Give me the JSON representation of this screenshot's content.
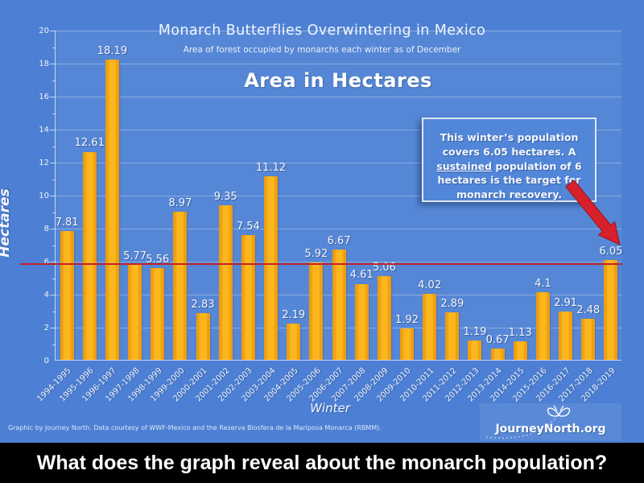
{
  "slide": {
    "title": "Monarch Butterflies Overwintering in Mexico",
    "subtitle": "Area of forest occupied by monarchs each winter as of December",
    "heading": "Area in Hectares",
    "note": {
      "part1": "This winter’s population covers 6.05 hectares. A ",
      "underlined": "sustained",
      "part2": " population of 6 hectares is the target for monarch recovery."
    },
    "footer_credit": "Graphic by Journey North. Data courtesy of WWF-Mexico and the Reserva Biosfera de la Mariposa Monarca (RBMM).",
    "logo": {
      "icon": "butterfly-icon",
      "text": "JourneyNorth.org"
    },
    "question": "What does the graph reveal about the monarch population?"
  },
  "chart_data": {
    "type": "bar",
    "title": "Monarch Butterflies Overwintering in Mexico",
    "subtitle": "Area of forest occupied by monarchs each winter as of December",
    "xlabel": "Winter",
    "ylabel": "Hectares",
    "ylim": [
      0,
      20
    ],
    "ytick_step": 2,
    "grid": true,
    "legend": false,
    "bar_color": "#fbb315",
    "categories": [
      "1994-1995",
      "1995-1996",
      "1996-1997",
      "1997-1998",
      "1998-1999",
      "1999-2000",
      "2000-2001",
      "2001-2002",
      "2002-2003",
      "2003-2004",
      "2004-2005",
      "2005-2006",
      "2006-2007",
      "2007-2008",
      "2008-2009",
      "2009-2010",
      "2010-2011",
      "2011-2012",
      "2012-2013",
      "2013-2014",
      "2014-2015",
      "2015-2016",
      "2016-2017",
      "2017-2018",
      "2018-2019"
    ],
    "values": [
      7.81,
      12.61,
      18.19,
      5.77,
      5.56,
      8.97,
      2.83,
      9.35,
      7.54,
      11.12,
      2.19,
      5.92,
      6.67,
      4.61,
      5.06,
      1.92,
      4.02,
      2.89,
      1.19,
      0.67,
      1.13,
      4.1,
      2.91,
      2.48,
      6.05
    ],
    "reference_line": {
      "value": 5.9,
      "label_meaning": "6-hectare recovery target",
      "color": "#c2232a"
    }
  },
  "colors": {
    "background": "#4d80d4",
    "bar": "#fbb315",
    "reference_line": "#c2232a",
    "arrow": "#d6202b",
    "question_bar_bg": "#000000",
    "question_text": "#ffffff"
  }
}
